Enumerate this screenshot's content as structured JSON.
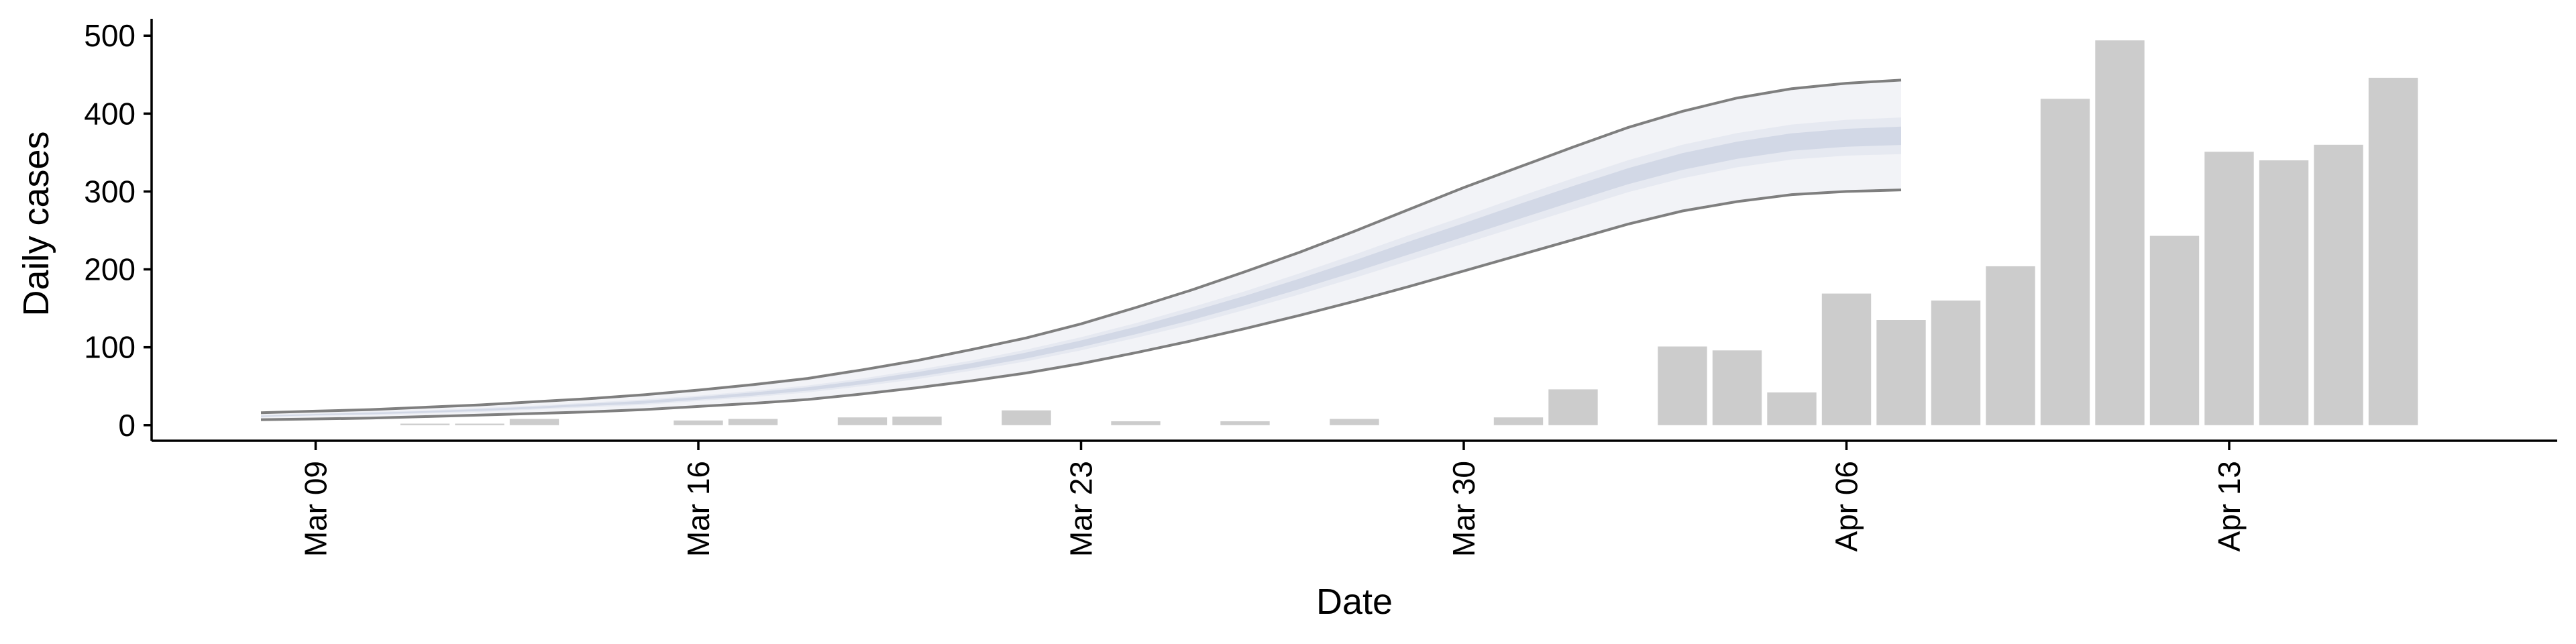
{
  "chart_data": {
    "type": "bar",
    "xlabel": "Date",
    "ylabel": "Daily cases",
    "ylim": [
      -20,
      520
    ],
    "yticks": [
      0,
      100,
      200,
      300,
      400,
      500
    ],
    "xticks": [
      {
        "date": "2020-03-09",
        "label": "Mar 09"
      },
      {
        "date": "2020-03-16",
        "label": "Mar 16"
      },
      {
        "date": "2020-03-23",
        "label": "Mar 23"
      },
      {
        "date": "2020-03-30",
        "label": "Mar 30"
      },
      {
        "date": "2020-04-06",
        "label": "Apr 06"
      },
      {
        "date": "2020-04-13",
        "label": "Apr 13"
      }
    ],
    "xlim": [
      "2020-03-06",
      "2020-04-19"
    ],
    "grid": false,
    "legend": "none",
    "bars": {
      "color": "#cccccc",
      "data": [
        {
          "date": "2020-03-11",
          "value": 2
        },
        {
          "date": "2020-03-12",
          "value": 2
        },
        {
          "date": "2020-03-13",
          "value": 8
        },
        {
          "date": "2020-03-16",
          "value": 6
        },
        {
          "date": "2020-03-17",
          "value": 8
        },
        {
          "date": "2020-03-19",
          "value": 10
        },
        {
          "date": "2020-03-20",
          "value": 11
        },
        {
          "date": "2020-03-22",
          "value": 19
        },
        {
          "date": "2020-03-24",
          "value": 5
        },
        {
          "date": "2020-03-26",
          "value": 5
        },
        {
          "date": "2020-03-28",
          "value": 8
        },
        {
          "date": "2020-03-31",
          "value": 10
        },
        {
          "date": "2020-04-01",
          "value": 46
        },
        {
          "date": "2020-04-03",
          "value": 101
        },
        {
          "date": "2020-04-04",
          "value": 96
        },
        {
          "date": "2020-04-05",
          "value": 42
        },
        {
          "date": "2020-04-06",
          "value": 169
        },
        {
          "date": "2020-04-07",
          "value": 135
        },
        {
          "date": "2020-04-08",
          "value": 160
        },
        {
          "date": "2020-04-09",
          "value": 204
        },
        {
          "date": "2020-04-10",
          "value": 419
        },
        {
          "date": "2020-04-11",
          "value": 494
        },
        {
          "date": "2020-04-12",
          "value": 243
        },
        {
          "date": "2020-04-13",
          "value": 351
        },
        {
          "date": "2020-04-14",
          "value": 340
        },
        {
          "date": "2020-04-15",
          "value": 360
        },
        {
          "date": "2020-04-16",
          "value": 446
        }
      ]
    },
    "band": {
      "outer_fill": "#f2f3f7",
      "mid_fill": "#e6e9f1",
      "inner_fill": "#d2d8e6",
      "line_color": "#7f7f7f",
      "data": [
        {
          "date": "2020-03-08",
          "lower": 7,
          "mid_low": 10,
          "mid_high": 13,
          "upper": 16
        },
        {
          "date": "2020-03-09",
          "lower": 8,
          "mid_low": 12,
          "mid_high": 15,
          "upper": 18
        },
        {
          "date": "2020-03-10",
          "lower": 9,
          "mid_low": 13,
          "mid_high": 17,
          "upper": 20
        },
        {
          "date": "2020-03-11",
          "lower": 11,
          "mid_low": 15,
          "mid_high": 19,
          "upper": 23
        },
        {
          "date": "2020-03-12",
          "lower": 13,
          "mid_low": 17,
          "mid_high": 22,
          "upper": 26
        },
        {
          "date": "2020-03-13",
          "lower": 15,
          "mid_low": 20,
          "mid_high": 25,
          "upper": 30
        },
        {
          "date": "2020-03-14",
          "lower": 17,
          "mid_low": 23,
          "mid_high": 29,
          "upper": 34
        },
        {
          "date": "2020-03-15",
          "lower": 20,
          "mid_low": 26,
          "mid_high": 33,
          "upper": 39
        },
        {
          "date": "2020-03-16",
          "lower": 24,
          "mid_low": 31,
          "mid_high": 38,
          "upper": 45
        },
        {
          "date": "2020-03-17",
          "lower": 28,
          "mid_low": 36,
          "mid_high": 44,
          "upper": 52
        },
        {
          "date": "2020-03-18",
          "lower": 33,
          "mid_low": 42,
          "mid_high": 51,
          "upper": 60
        },
        {
          "date": "2020-03-19",
          "lower": 40,
          "mid_low": 50,
          "mid_high": 60,
          "upper": 71
        },
        {
          "date": "2020-03-20",
          "lower": 48,
          "mid_low": 59,
          "mid_high": 71,
          "upper": 83
        },
        {
          "date": "2020-03-21",
          "lower": 57,
          "mid_low": 70,
          "mid_high": 83,
          "upper": 97
        },
        {
          "date": "2020-03-22",
          "lower": 67,
          "mid_low": 82,
          "mid_high": 97,
          "upper": 112
        },
        {
          "date": "2020-03-23",
          "lower": 79,
          "mid_low": 96,
          "mid_high": 113,
          "upper": 130
        },
        {
          "date": "2020-03-24",
          "lower": 93,
          "mid_low": 112,
          "mid_high": 131,
          "upper": 151
        },
        {
          "date": "2020-03-25",
          "lower": 108,
          "mid_low": 129,
          "mid_high": 151,
          "upper": 173
        },
        {
          "date": "2020-03-26",
          "lower": 124,
          "mid_low": 148,
          "mid_high": 172,
          "upper": 197
        },
        {
          "date": "2020-03-27",
          "lower": 141,
          "mid_low": 168,
          "mid_high": 195,
          "upper": 222
        },
        {
          "date": "2020-03-28",
          "lower": 159,
          "mid_low": 189,
          "mid_high": 219,
          "upper": 249
        },
        {
          "date": "2020-03-29",
          "lower": 178,
          "mid_low": 211,
          "mid_high": 244,
          "upper": 277
        },
        {
          "date": "2020-03-30",
          "lower": 198,
          "mid_low": 233,
          "mid_high": 268,
          "upper": 305
        },
        {
          "date": "2020-03-31",
          "lower": 218,
          "mid_low": 255,
          "mid_high": 293,
          "upper": 331
        },
        {
          "date": "2020-04-01",
          "lower": 238,
          "mid_low": 277,
          "mid_high": 317,
          "upper": 357
        },
        {
          "date": "2020-04-02",
          "lower": 258,
          "mid_low": 299,
          "mid_high": 340,
          "upper": 382
        },
        {
          "date": "2020-04-03",
          "lower": 275,
          "mid_low": 317,
          "mid_high": 360,
          "upper": 403
        },
        {
          "date": "2020-04-04",
          "lower": 287,
          "mid_low": 331,
          "mid_high": 375,
          "upper": 420
        },
        {
          "date": "2020-04-05",
          "lower": 296,
          "mid_low": 341,
          "mid_high": 386,
          "upper": 432
        },
        {
          "date": "2020-04-06",
          "lower": 300,
          "mid_low": 346,
          "mid_high": 392,
          "upper": 439
        },
        {
          "date": "2020-04-07",
          "lower": 302,
          "mid_low": 348,
          "mid_high": 395,
          "upper": 443
        }
      ]
    }
  }
}
